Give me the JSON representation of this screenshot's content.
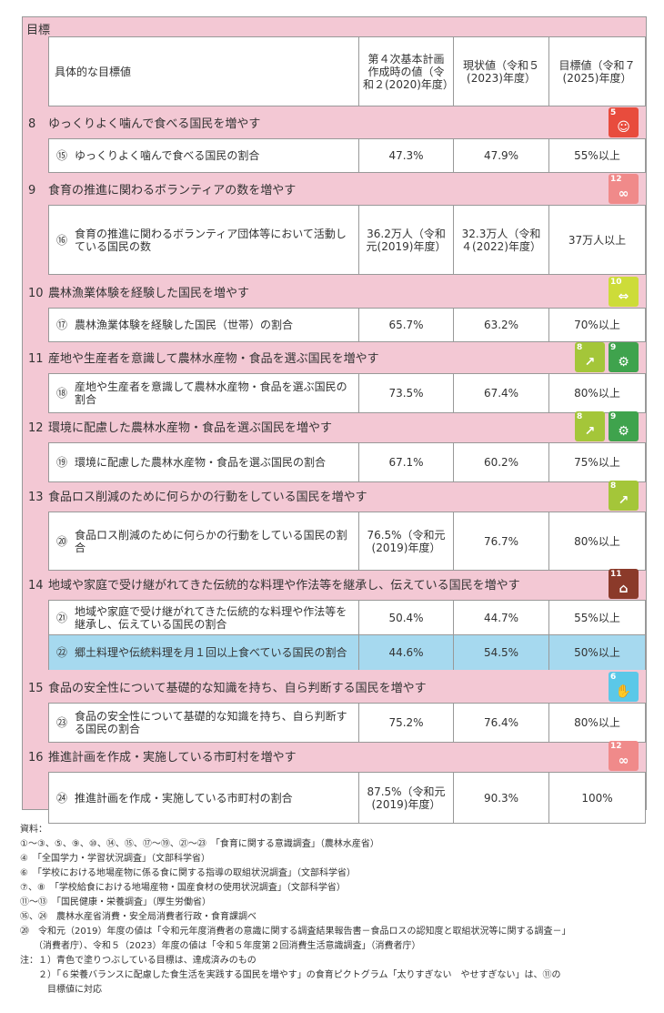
{
  "header": {
    "section_title": "目標",
    "col_indicator": "具体的な目標値",
    "col_baseline": "第４次基本計画作成時の値（令和２(2020)年度）",
    "col_current": "現状値（令和５(2023)年度）",
    "col_target": "目標値（令和７(2025)年度）"
  },
  "goals": [
    {
      "num": "8",
      "title": "ゆっくりよく噛んで食べる国民を増やす",
      "sdgs": [
        {
          "n": "5",
          "color": "#e84c3d",
          "glyph": "☺"
        }
      ],
      "rows": [
        {
          "circ": "⑮",
          "text": "ゆっくりよく噛んで食べる国民の割合",
          "baseline": "47.3%",
          "current": "47.9%",
          "target": "55%以上"
        }
      ]
    },
    {
      "num": "9",
      "title": "食育の推進に関わるボランティアの数を増やす",
      "sdgs": [
        {
          "n": "12",
          "color": "#f08a8a",
          "glyph": "∞"
        }
      ],
      "rows": [
        {
          "circ": "⑯",
          "text": "食育の推進に関わるボランティア団体等において活動している国民の数",
          "baseline": "36.2万人（令和元(2019)年度）",
          "current": "32.3万人（令和４(2022)年度）",
          "target": "37万人以上"
        }
      ]
    },
    {
      "num": "10",
      "title": "農林漁業体験を経験した国民を増やす",
      "sdgs": [
        {
          "n": "10",
          "color": "#cddc39",
          "glyph": "⇔"
        }
      ],
      "rows": [
        {
          "circ": "⑰",
          "text": "農林漁業体験を経験した国民（世帯）の割合",
          "baseline": "65.7%",
          "current": "63.2%",
          "target": "70%以上"
        }
      ]
    },
    {
      "num": "11",
      "title": "産地や生産者を意識して農林水産物・食品を選ぶ国民を増やす",
      "sdgs": [
        {
          "n": "8",
          "color": "#a4c639",
          "glyph": "↗"
        },
        {
          "n": "9",
          "color": "#3fa34d",
          "glyph": "⚙"
        }
      ],
      "rows": [
        {
          "circ": "⑱",
          "text": "産地や生産者を意識して農林水産物・食品を選ぶ国民の割合",
          "baseline": "73.5%",
          "current": "67.4%",
          "target": "80%以上"
        }
      ]
    },
    {
      "num": "12",
      "title": "環境に配慮した農林水産物・食品を選ぶ国民を増やす",
      "sdgs": [
        {
          "n": "8",
          "color": "#a4c639",
          "glyph": "↗"
        },
        {
          "n": "9",
          "color": "#3fa34d",
          "glyph": "⚙"
        }
      ],
      "rows": [
        {
          "circ": "⑲",
          "text": "環境に配慮した農林水産物・食品を選ぶ国民の割合",
          "baseline": "67.1%",
          "current": "60.2%",
          "target": "75%以上"
        }
      ]
    },
    {
      "num": "13",
      "title": "食品ロス削減のために何らかの行動をしている国民を増やす",
      "sdgs": [
        {
          "n": "8",
          "color": "#a4c639",
          "glyph": "↗"
        }
      ],
      "rows": [
        {
          "circ": "⑳",
          "text": "食品ロス削減のために何らかの行動をしている国民の割合",
          "baseline": "76.5%（令和元(2019)年度）",
          "current": "76.7%",
          "target": "80%以上"
        }
      ]
    },
    {
      "num": "14",
      "title": "地域や家庭で受け継がれてきた伝統的な料理や作法等を継承し、伝えている国民を増やす",
      "sdgs": [
        {
          "n": "11",
          "color": "#8b3a2a",
          "glyph": "⌂"
        }
      ],
      "rows": [
        {
          "circ": "㉑",
          "text": "地域や家庭で受け継がれてきた伝統的な料理や作法等を継承し、伝えている国民の割合",
          "baseline": "50.4%",
          "current": "44.7%",
          "target": "55%以上"
        },
        {
          "circ": "㉒",
          "text": "郷土料理や伝統料理を月１回以上食べている国民の割合",
          "baseline": "44.6%",
          "current": "54.5%",
          "target": "50%以上",
          "achieved": true
        }
      ]
    },
    {
      "num": "15",
      "title": "食品の安全性について基礎的な知識を持ち、自ら判断する国民を増やす",
      "sdgs": [
        {
          "n": "6",
          "color": "#5bc8e8",
          "glyph": "✋"
        }
      ],
      "rows": [
        {
          "circ": "㉓",
          "text": "食品の安全性について基礎的な知識を持ち、自ら判断する国民の割合",
          "baseline": "75.2%",
          "current": "76.4%",
          "target": "80%以上"
        }
      ]
    },
    {
      "num": "16",
      "title": "推進計画を作成・実施している市町村を増やす",
      "sdgs": [
        {
          "n": "12",
          "color": "#f08a8a",
          "glyph": "∞"
        }
      ],
      "rows": [
        {
          "circ": "㉔",
          "text": "推進計画を作成・実施している市町村の割合",
          "baseline": "87.5%（令和元(2019)年度）",
          "current": "90.3%",
          "target": "100%"
        }
      ]
    }
  ],
  "notes": [
    "資料：",
    "①〜③、⑤、⑨、⑩、⑭、⑮、⑰〜⑲、㉑〜㉓　「食育に関する意識調査」（農林水産省）",
    "④　「全国学力・学習状況調査」（文部科学省）",
    "⑥　「学校における地場産物に係る食に関する指導の取組状況調査」（文部科学省）",
    "⑦、⑧　「学校給食における地場産物・国産食材の使用状況調査」（文部科学省）",
    "⑪〜⑬　「国民健康・栄養調査」（厚生労働省）",
    "⑯、㉔　農林水産省消費・安全局消費者行政・食育課調べ",
    "⑳　令和元（2019）年度の値は「令和元年度消費者の意識に関する調査結果報告書－食品ロスの認知度と取組状況等に関する調査－」",
    "　　（消費者庁）、令和５（2023）年度の値は「令和５年度第２回消費生活意識調査」（消費者庁）",
    "注：１）青色で塗りつぶしている目標は、達成済みのもの",
    "　　２）「６栄養バランスに配慮した食生活を実践する国民を増やす」の食育ピクトグラム「太りすぎない　やせすぎない」は、⑪の",
    "　　　目標値に対応"
  ]
}
